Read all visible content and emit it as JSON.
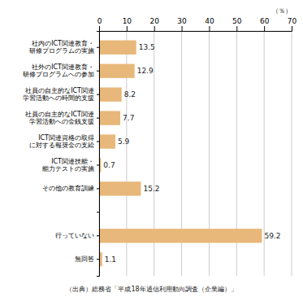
{
  "chart_data": {
    "type": "bar",
    "orientation": "horizontal",
    "categories": [
      "社内のICT関連教育・\n研修プログラムの実施",
      "社外のICT関連教育・\n研修プログラムへの参加",
      "社員の自主的なICT関連\n学習活動への時間的支援",
      "社員の自主的なICT関連\n学習活動への金銭支援",
      "ICT関連資格の取得\nに対する報奨金の支給",
      "ICT関連技能・\n能力テストの実施",
      "その他の教育訓練",
      null,
      "行っていない",
      "無回答"
    ],
    "values": [
      13.5,
      12.9,
      8.2,
      7.7,
      5.9,
      0.7,
      15.2,
      null,
      59.2,
      1.1
    ],
    "color": "#e8b87a",
    "xlabel": "（％）",
    "xlim": [
      0,
      70
    ],
    "xticks": [
      0,
      10,
      20,
      30,
      40,
      50,
      60,
      70
    ],
    "grid": true,
    "data_labels": true,
    "source": "（出典）総務省「平成18年通信利用動向調査（企業編）」"
  }
}
